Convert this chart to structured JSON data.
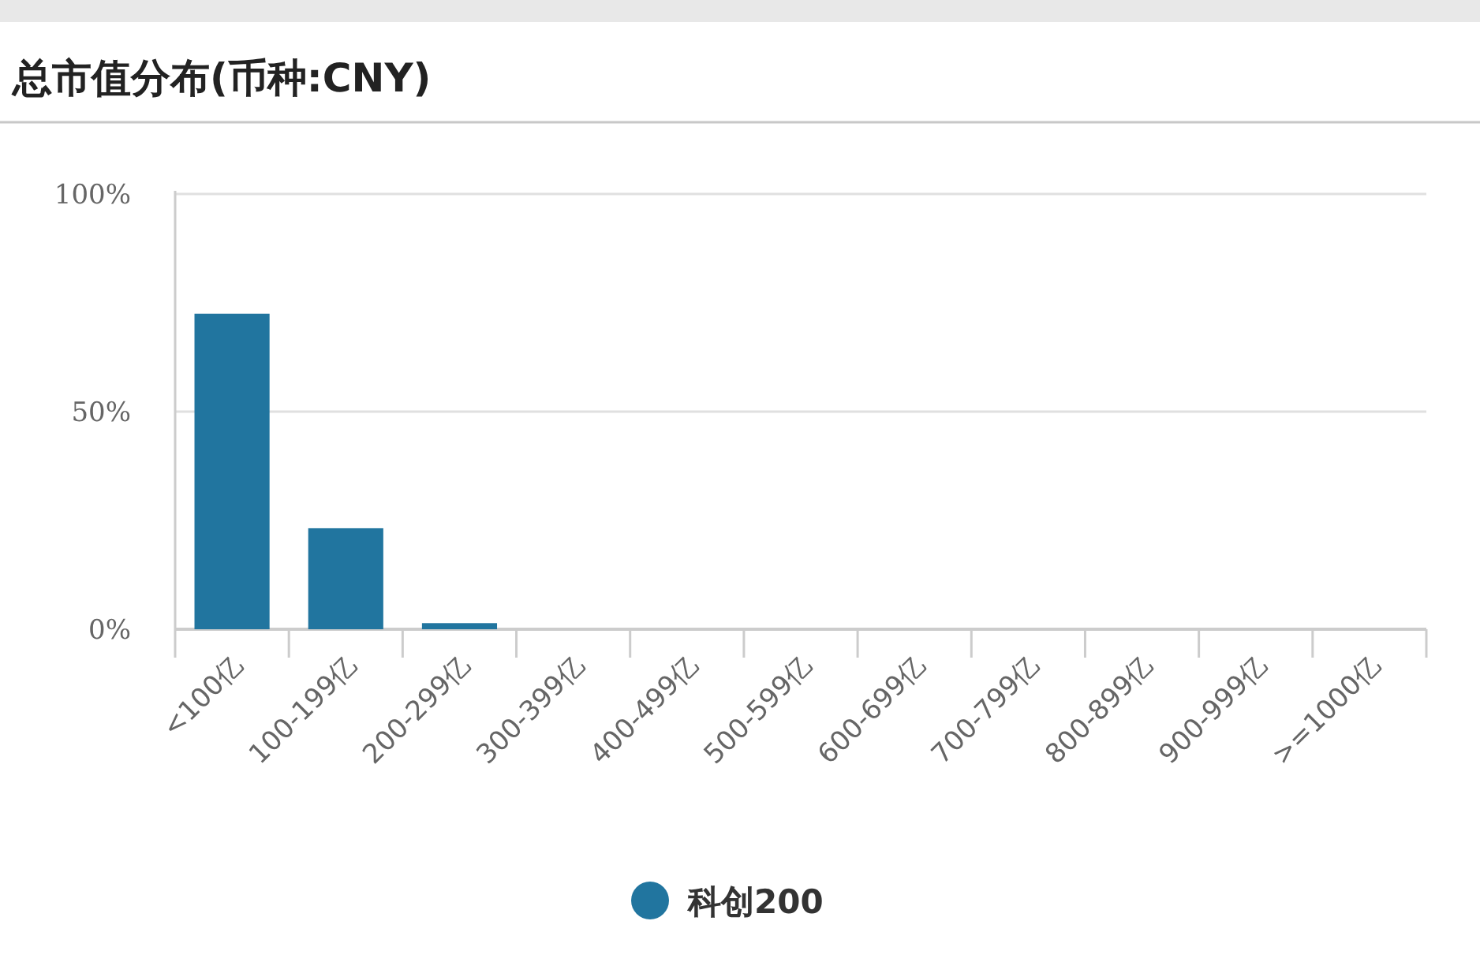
{
  "chart_data": {
    "type": "bar",
    "title": "总市值分布(币种:CNY)",
    "categories": [
      "<100亿",
      "100-199亿",
      "200-299亿",
      "300-399亿",
      "400-499亿",
      "500-599亿",
      "600-699亿",
      "700-799亿",
      "800-899亿",
      "900-999亿",
      ">=1000亿"
    ],
    "series": [
      {
        "name": "科创200",
        "color": "#21759f",
        "values": [
          72.5,
          23.2,
          1.4,
          0,
          0,
          0,
          0,
          0,
          0,
          0,
          0
        ]
      }
    ],
    "ylim": [
      0,
      100
    ],
    "yticks": [
      {
        "value": 0,
        "label": "0%"
      },
      {
        "value": 50,
        "label": "50%"
      },
      {
        "value": 100,
        "label": "100%"
      }
    ],
    "grid": "y",
    "legend": "bottom"
  }
}
